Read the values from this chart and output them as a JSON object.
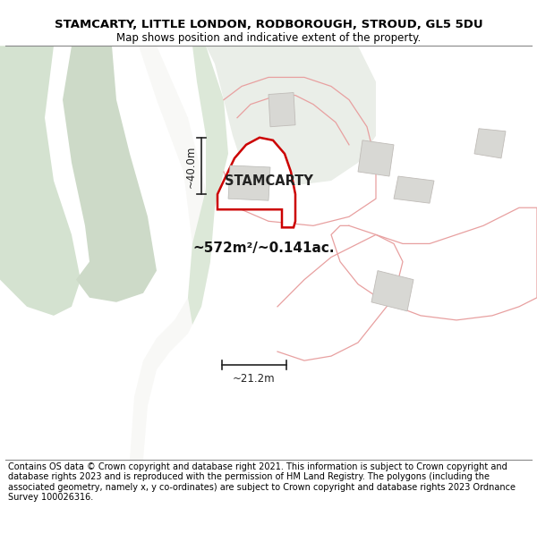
{
  "title": "STAMCARTY, LITTLE LONDON, RODBOROUGH, STROUD, GL5 5DU",
  "subtitle": "Map shows position and indicative extent of the property.",
  "property_label": "STAMCARTY",
  "area_label": "~572m²/~0.141ac.",
  "dim_width": "~21.2m",
  "dim_height": "~40.0m",
  "footer": "Contains OS data © Crown copyright and database right 2021. This information is subject to Crown copyright and database rights 2023 and is reproduced with the permission of HM Land Registry. The polygons (including the associated geometry, namely x, y co-ordinates) are subject to Crown copyright and database rights 2023 Ordnance Survey 100026316.",
  "fig_width": 6.0,
  "fig_height": 6.25,
  "map_bg": "#f2f4ef",
  "green_light": "#dce8dc",
  "green_dark": "#c8d8c4",
  "road_white": "#ffffff",
  "plot_fill": "#ffffff",
  "plot_edge": "#cc0000",
  "parcel_fill": "#e0e0dc",
  "parcel_edge": "#c0bab0",
  "outline_pink": "#e8b0b0",
  "title_fontsize": 9.5,
  "subtitle_fontsize": 8.5,
  "footer_fontsize": 7.0
}
